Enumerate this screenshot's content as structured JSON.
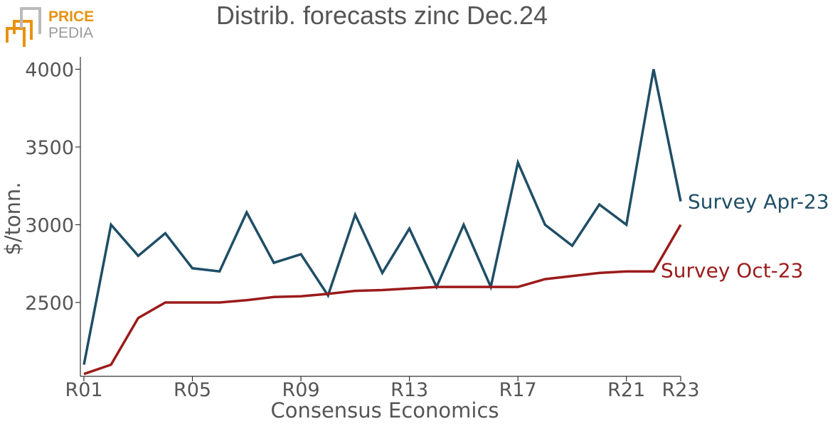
{
  "logo": {
    "line1": "PRICE",
    "line2": "PEDIA",
    "color1": "#e8920f",
    "color2": "#9a9a9a"
  },
  "chart_data": {
    "type": "line",
    "title": "Distrib. forecasts zinc Dec.24",
    "xlabel": "Consensus Economics",
    "ylabel": "$/tonn.",
    "categories": [
      "R01",
      "R02",
      "R03",
      "R04",
      "R05",
      "R06",
      "R07",
      "R08",
      "R09",
      "R10",
      "R11",
      "R12",
      "R13",
      "R14",
      "R15",
      "R16",
      "R17",
      "R18",
      "R19",
      "R20",
      "R21",
      "R22",
      "R23"
    ],
    "x_tick_labels": [
      "R01",
      "R05",
      "R09",
      "R13",
      "R17",
      "R21",
      "R23"
    ],
    "y_ticks": [
      2500,
      3000,
      3500,
      4000
    ],
    "ylim": [
      2025,
      4080
    ],
    "grid": false,
    "series": [
      {
        "name": "Survey Apr-23",
        "color": "#1f4e66",
        "values": [
          2100,
          3000,
          2800,
          2945,
          2720,
          2700,
          3080,
          2755,
          2810,
          2545,
          3065,
          2690,
          2975,
          2600,
          3000,
          2600,
          3400,
          3000,
          2865,
          3130,
          3000,
          4000,
          3150
        ]
      },
      {
        "name": "Survey Oct-23",
        "color": "#9b1b1b",
        "values": [
          2040,
          2100,
          2400,
          2500,
          2500,
          2500,
          2515,
          2535,
          2540,
          2555,
          2575,
          2580,
          2590,
          2600,
          2600,
          2600,
          2600,
          2650,
          2670,
          2690,
          2700,
          2700,
          3000
        ]
      }
    ]
  }
}
